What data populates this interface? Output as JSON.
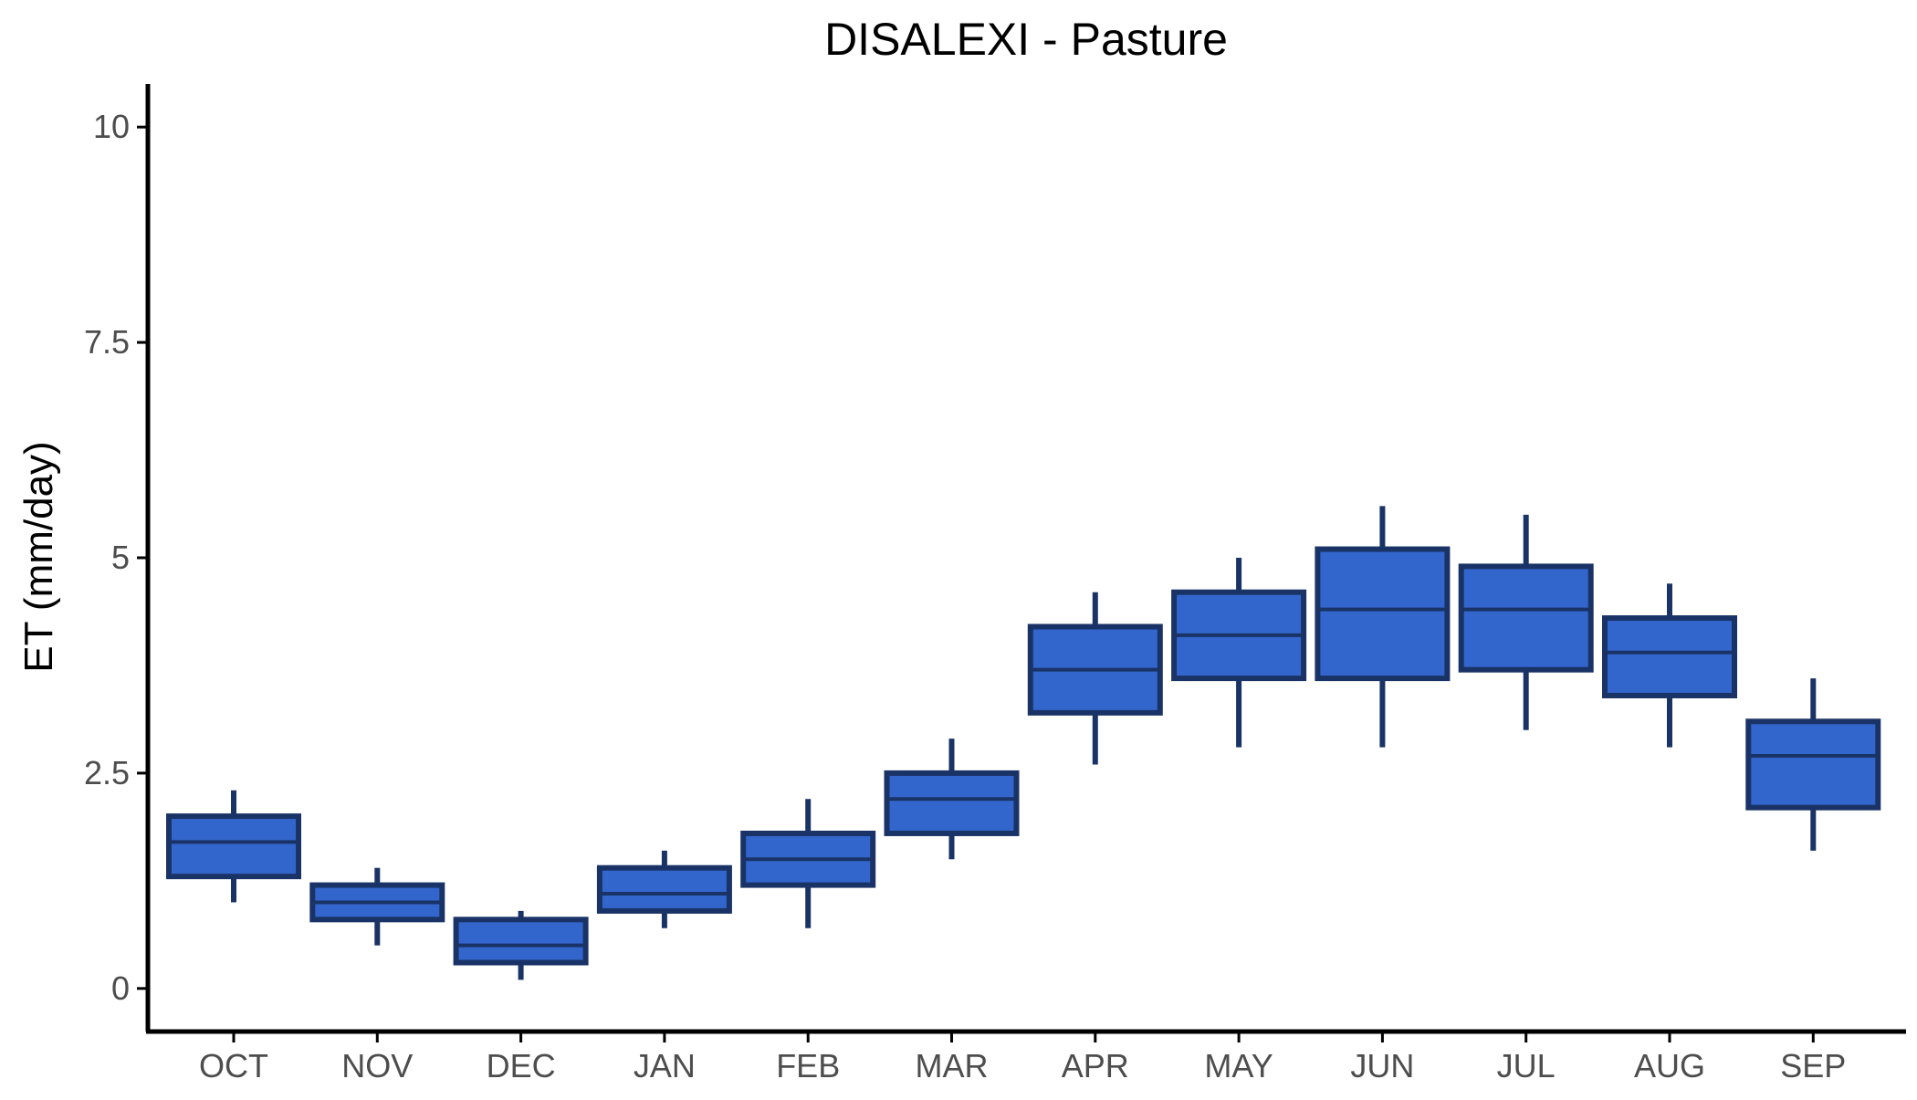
{
  "chart_data": {
    "type": "box",
    "title": "DISALEXI - Pasture",
    "xlabel": "",
    "ylabel": "ET (mm/day)",
    "ylim": [
      -0.5,
      10.5
    ],
    "yticks": [
      0,
      2.5,
      5,
      7.5,
      10
    ],
    "ytick_labels": [
      "0",
      "2.5",
      "5",
      "7.5",
      "10"
    ],
    "grid": false,
    "legend": "none",
    "colors": {
      "box_fill": "#3366cc",
      "box_stroke": "#1a3366",
      "axis": "#000000"
    },
    "categories": [
      "OCT",
      "NOV",
      "DEC",
      "JAN",
      "FEB",
      "MAR",
      "APR",
      "MAY",
      "JUN",
      "JUL",
      "AUG",
      "SEP"
    ],
    "boxes": [
      {
        "min": 1.0,
        "q1": 1.3,
        "median": 1.7,
        "q3": 2.0,
        "max": 2.3
      },
      {
        "min": 0.5,
        "q1": 0.8,
        "median": 1.0,
        "q3": 1.2,
        "max": 1.4
      },
      {
        "min": 0.1,
        "q1": 0.3,
        "median": 0.5,
        "q3": 0.8,
        "max": 0.9
      },
      {
        "min": 0.7,
        "q1": 0.9,
        "median": 1.1,
        "q3": 1.4,
        "max": 1.6
      },
      {
        "min": 0.7,
        "q1": 1.2,
        "median": 1.5,
        "q3": 1.8,
        "max": 2.2
      },
      {
        "min": 1.5,
        "q1": 1.8,
        "median": 2.2,
        "q3": 2.5,
        "max": 2.9
      },
      {
        "min": 2.6,
        "q1": 3.2,
        "median": 3.7,
        "q3": 4.2,
        "max": 4.6
      },
      {
        "min": 2.8,
        "q1": 3.6,
        "median": 4.1,
        "q3": 4.6,
        "max": 5.0
      },
      {
        "min": 2.8,
        "q1": 3.6,
        "median": 4.4,
        "q3": 5.1,
        "max": 5.6
      },
      {
        "min": 3.0,
        "q1": 3.7,
        "median": 4.4,
        "q3": 4.9,
        "max": 5.5
      },
      {
        "min": 2.8,
        "q1": 3.4,
        "median": 3.9,
        "q3": 4.3,
        "max": 4.7
      },
      {
        "min": 1.6,
        "q1": 2.1,
        "median": 2.7,
        "q3": 3.1,
        "max": 3.6
      }
    ]
  }
}
